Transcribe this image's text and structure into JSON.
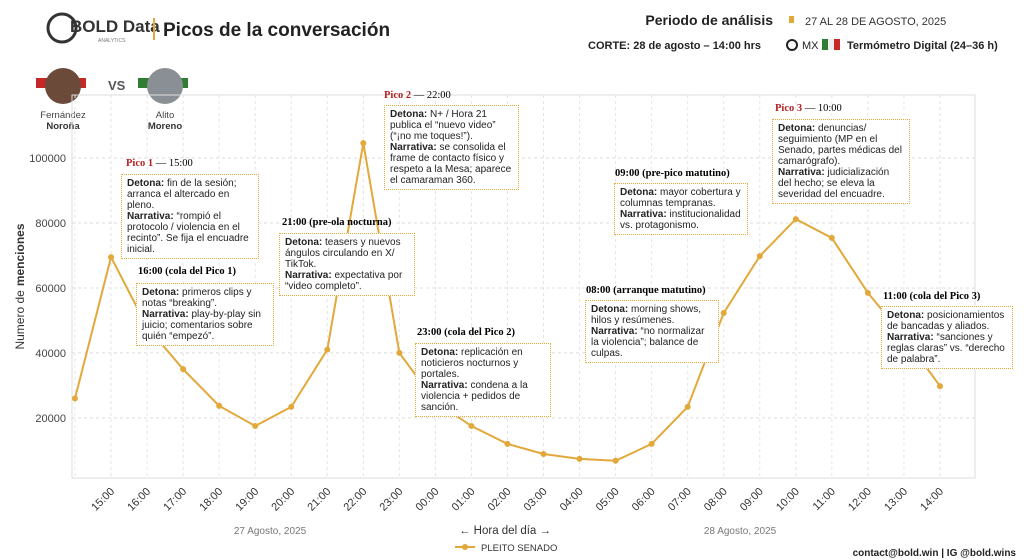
{
  "header": {
    "logo": "BOLD Data",
    "logo_sub": "ANALYTICS",
    "title": "Picos de la conversación",
    "period_label": "Periodo de análisis",
    "period": "27 AL 28 DE AGOSTO, 2025",
    "cut": "CORTE: 28 de agosto  – 14:00 hrs",
    "country": "MX",
    "source": "Termómetro Digital (24–36 h)"
  },
  "versus": {
    "left": {
      "first": "Fernández",
      "last": "Noroña"
    },
    "sep": "VS",
    "right": {
      "first": "Alito",
      "last": "Moreno"
    }
  },
  "footer": "contact@bold.win | IG @bold.wins",
  "chart_data": {
    "type": "line",
    "ylabel": {
      "text": "Numero de",
      "bold": "menciones"
    },
    "xlabel": "←  Hora del día  →",
    "date_labels": [
      "27 Agosto, 2025",
      "28 Agosto, 2025"
    ],
    "categories": [
      null,
      "15:00",
      "16:00",
      "17:00",
      "18:00",
      "19:00",
      "20:00",
      "21:00",
      "22:00",
      "23:00",
      "00:00",
      "01:00",
      "02:00",
      "03:00",
      "04:00",
      "05:00",
      "06:00",
      "07:00",
      "08:00",
      "09:00",
      "10:00",
      "11:00",
      "12:00",
      "13:00",
      "14:00"
    ],
    "series": [
      {
        "name": "PLEITO SENADO",
        "color": "#e3a83a",
        "values": [
          26000,
          69500,
          48000,
          35000,
          23700,
          17500,
          23400,
          41000,
          104600,
          40000,
          25000,
          17500,
          12000,
          8900,
          7400,
          6800,
          12000,
          23400,
          52300,
          69800,
          81200,
          75400,
          58500,
          45000,
          29800
        ]
      }
    ],
    "ylim": [
      1500,
      119400
    ],
    "yticks": [
      20000,
      40000,
      60000,
      80000,
      100000
    ],
    "grid": true,
    "legend": "bottom",
    "annotations": [
      {
        "title": "Pico 1",
        "time": "— 15:00",
        "lines": [
          {
            "label": "Detona:",
            "text": "fin de la sesión; arranca el altercado en pleno."
          },
          {
            "label": "Narrativa:",
            "text": "“rompió el protocolo / violencia en el recinto”. Se fija el encuadre inicial."
          }
        ]
      },
      {
        "title": "16:00 (cola del Pico 1)",
        "lines": [
          {
            "label": "Detona:",
            "text": "primeros clips y notas “breaking”."
          },
          {
            "label": "Narrativa:",
            "text": "play-by-play sin juicio; comentarios sobre quién “empezó”."
          }
        ]
      },
      {
        "title": "21:00 (pre-ola nocturna)",
        "lines": [
          {
            "label": "Detona:",
            "text": "teasers y nuevos ángulos circulando en X/ TikTok."
          },
          {
            "label": "Narrativa:",
            "text": "expectativa por “video completo”."
          }
        ]
      },
      {
        "title": "Pico 2",
        "time": "— 22:00",
        "lines": [
          {
            "label": "Detona:",
            "text": "N+ / Hora 21 publica el “nuevo video” (“¡no me toques!”)."
          },
          {
            "label": "Narrativa:",
            "text": "se consolida el frame de contacto físico y respeto a la Mesa; aparece el camaraman 360."
          }
        ]
      },
      {
        "title": "23:00 (cola del Pico 2)",
        "lines": [
          {
            "label": "Detona:",
            "text": "replicación en noticieros nocturnos y portales."
          },
          {
            "label": "Narrativa:",
            "text": "condena a la violencia + pedidos de sanción."
          }
        ]
      },
      {
        "title": "08:00 (arranque matutino)",
        "lines": [
          {
            "label": "Detona:",
            "text": "morning shows, hilos y resúmenes."
          },
          {
            "label": "Narrativa:",
            "text": "“no normalizar la violencia”; balance de culpas."
          }
        ]
      },
      {
        "title": "09:00 (pre-pico matutino)",
        "lines": [
          {
            "label": "Detona:",
            "text": "mayor cobertura y columnas tempranas."
          },
          {
            "label": "Narrativa:",
            "text": "institucionalidad vs. protagonismo."
          }
        ]
      },
      {
        "title": "Pico 3",
        "time": "— 10:00",
        "lines": [
          {
            "label": "Detona:",
            "text": "denuncias/ seguimiento (MP en el Senado, partes médicas del camarógrafo)."
          },
          {
            "label": "Narrativa:",
            "text": "judicialización del hecho; se eleva la severidad del encuadre."
          }
        ]
      },
      {
        "title": "11:00 (cola del Pico 3)",
        "lines": [
          {
            "label": "Detona:",
            "text": "posicionamientos de bancadas y aliados."
          },
          {
            "label": "Narrativa:",
            "text": "“sanciones y reglas claras” vs. “derecho de palabra”."
          }
        ]
      }
    ]
  }
}
